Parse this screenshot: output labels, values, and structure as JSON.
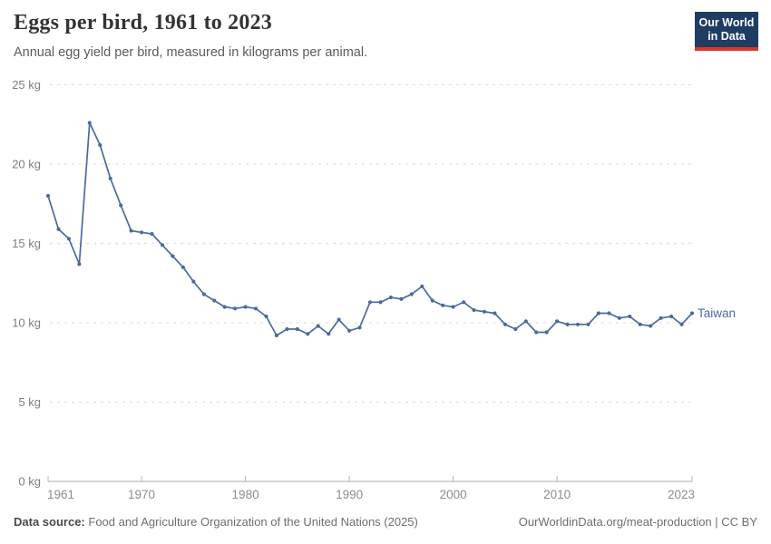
{
  "header": {
    "title": "Eggs per bird, 1961 to 2023",
    "subtitle": "Annual egg yield per bird, measured in kilograms per animal."
  },
  "logo": {
    "line1": "Our World",
    "line2": "in Data",
    "bg_color": "#1d3d63",
    "accent_color": "#dc372b"
  },
  "chart_data": {
    "type": "line",
    "title": "Eggs per bird, 1961 to 2023",
    "subtitle": "Annual egg yield per bird, measured in kilograms per animal.",
    "xlabel": "",
    "ylabel": "kg",
    "xlim": [
      1961,
      2023
    ],
    "ylim": [
      0,
      25
    ],
    "grid": "horizontal-dashed",
    "legend_position": "end-of-line-label",
    "x_ticks": [
      1961,
      1970,
      1980,
      1990,
      2000,
      2010,
      2023
    ],
    "x_tick_labels": [
      "1961",
      "1970",
      "1980",
      "1990",
      "2000",
      "2010",
      "2023"
    ],
    "y_ticks": [
      0,
      5,
      10,
      15,
      20,
      25
    ],
    "y_tick_labels": [
      "0 kg",
      "5 kg",
      "10 kg",
      "15 kg",
      "20 kg",
      "25 kg"
    ],
    "series": [
      {
        "name": "Taiwan",
        "color": "#4c6a9c",
        "x": [
          1961,
          1962,
          1963,
          1964,
          1965,
          1966,
          1967,
          1968,
          1969,
          1970,
          1971,
          1972,
          1973,
          1974,
          1975,
          1976,
          1977,
          1978,
          1979,
          1980,
          1981,
          1982,
          1983,
          1984,
          1985,
          1986,
          1987,
          1988,
          1989,
          1990,
          1991,
          1992,
          1993,
          1994,
          1995,
          1996,
          1997,
          1998,
          1999,
          2000,
          2001,
          2002,
          2003,
          2004,
          2005,
          2006,
          2007,
          2008,
          2009,
          2010,
          2011,
          2012,
          2013,
          2014,
          2015,
          2016,
          2017,
          2018,
          2019,
          2020,
          2021,
          2022,
          2023
        ],
        "values": [
          18.0,
          15.9,
          15.3,
          13.7,
          22.6,
          21.2,
          19.1,
          17.4,
          15.8,
          15.7,
          15.6,
          14.9,
          14.2,
          13.5,
          12.6,
          11.8,
          11.4,
          11.0,
          10.9,
          11.0,
          10.9,
          10.4,
          9.2,
          9.6,
          9.6,
          9.3,
          9.8,
          9.3,
          10.2,
          9.5,
          9.7,
          11.3,
          11.3,
          11.6,
          11.5,
          11.8,
          12.3,
          11.4,
          11.1,
          11.0,
          11.3,
          10.8,
          10.7,
          10.6,
          9.9,
          9.6,
          10.1,
          9.4,
          9.4,
          10.1,
          9.9,
          9.9,
          9.9,
          10.6,
          10.6,
          10.3,
          10.4,
          9.9,
          9.8,
          10.3,
          10.4,
          9.9,
          10.6
        ]
      }
    ]
  },
  "footer": {
    "source_label": "Data source:",
    "source": "Food and Agriculture Organization of the United Nations (2025)",
    "credit": "OurWorldinData.org/meat-production | CC BY"
  }
}
